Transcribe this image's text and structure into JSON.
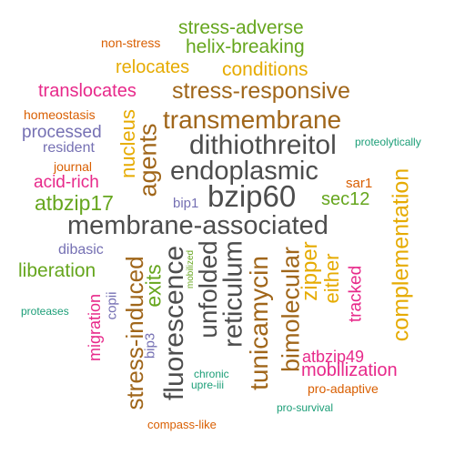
{
  "colors": {
    "gray": "#4d4d4d",
    "brown": "#a0661a",
    "green": "#66a61e",
    "gold": "#e6ab02",
    "magenta": "#e7298a",
    "orange": "#d95f02",
    "purple": "#7570b3",
    "teal": "#1b9e77"
  },
  "words": {
    "stress_adverse": "stress-adverse",
    "non_stress": "non-stress",
    "helix_breaking": "helix-breaking",
    "relocates": "relocates",
    "conditions": "conditions",
    "translocates": "translocates",
    "stress_responsive": "stress-responsive",
    "homeostasis": "homeostasis",
    "processed": "processed",
    "resident": "resident",
    "journal": "journal",
    "acid_rich": "acid-rich",
    "atbzip17": "atbzip17",
    "dibasic": "dibasic",
    "liberation": "liberation",
    "proteases": "proteases",
    "transmembrane": "transmembrane",
    "dithiothreitol": "dithiothreitol",
    "endoplasmic": "endoplasmic",
    "bzip60": "bzip60",
    "membrane_associated": "membrane-associated",
    "proteolytically": "proteolytically",
    "sar1": "sar1",
    "sec12": "sec12",
    "bip1": "bip1",
    "nucleus": "nucleus",
    "agents": "agents",
    "complementation": "complementation",
    "stress_induced": "stress-induced",
    "exits": "exits",
    "fluorescence": "fluorescence",
    "unfolded": "unfolded",
    "reticulum": "reticulum",
    "tunicamycin": "tunicamycin",
    "bimolecular": "bimolecular",
    "zipper": "zipper",
    "either": "either",
    "tracked": "tracked",
    "migration": "migration",
    "copii": "copii",
    "bip3": "bip3",
    "mobilized": "mobilized",
    "chronic": "chronic",
    "upre_iii": "upre-iii",
    "atbzip49": "atbzip49",
    "mobilization": "mobilization",
    "pro_adaptive": "pro-adaptive",
    "pro_survival": "pro-survival",
    "compass_like": "compass-like"
  }
}
